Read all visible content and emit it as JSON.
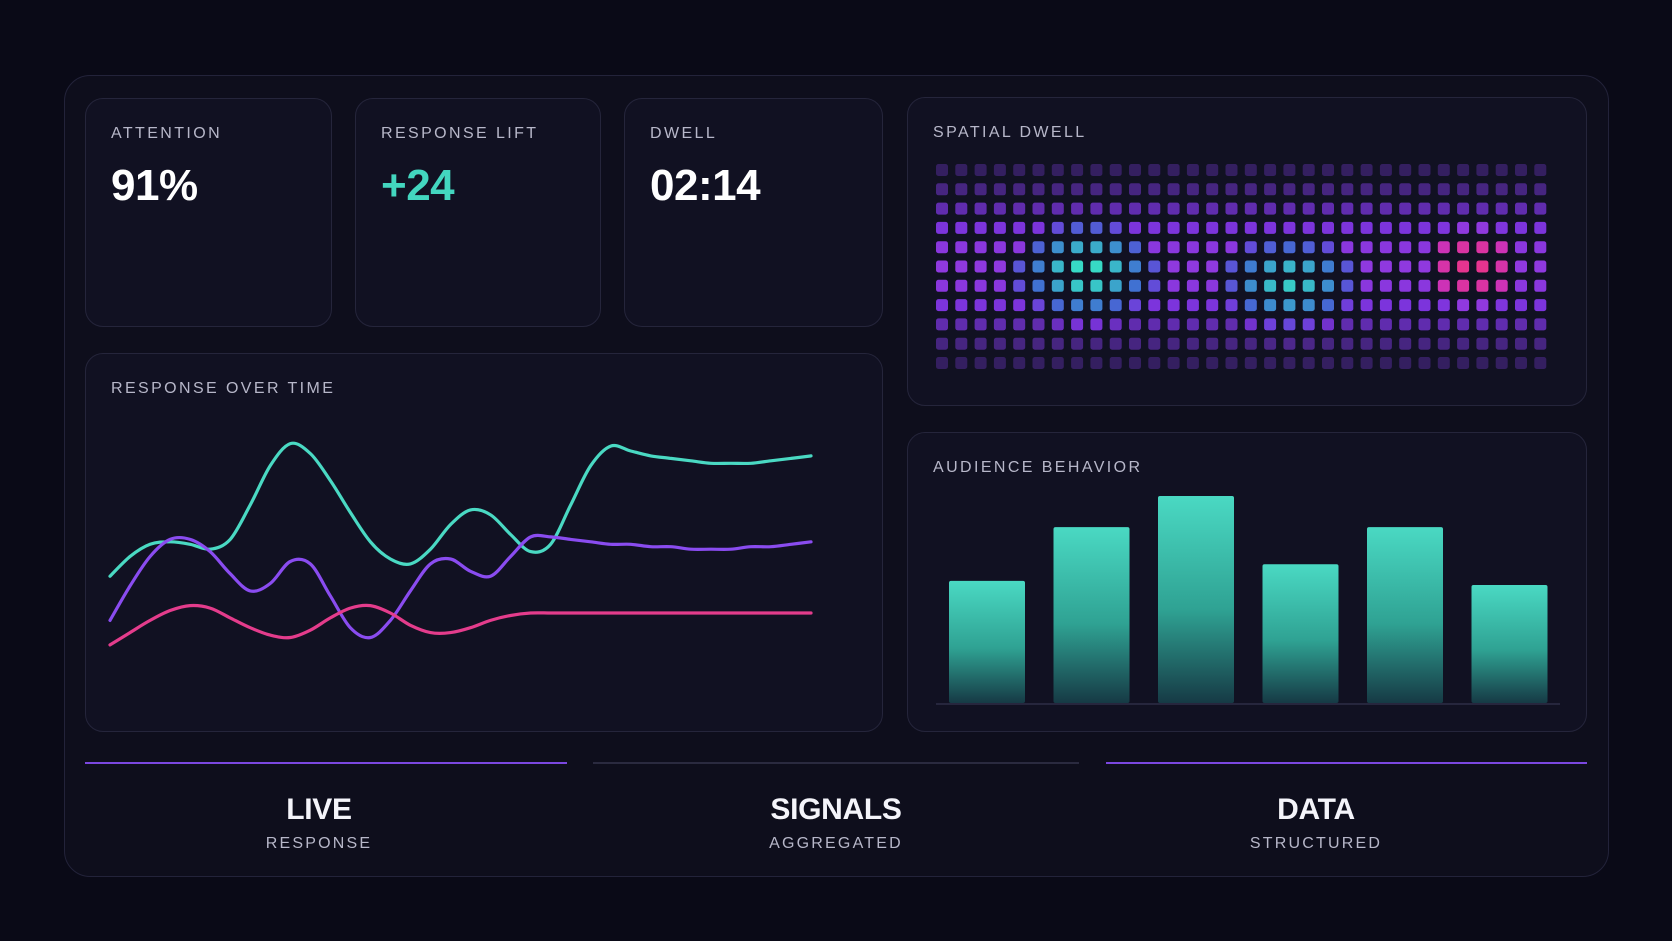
{
  "kpis": {
    "attention": {
      "label": "ATTENTION",
      "value": "91%"
    },
    "response_lift": {
      "label": "RESPONSE LIFT",
      "value": "+24"
    },
    "dwell": {
      "label": "DWELL",
      "value": "02:14"
    }
  },
  "response_over_time": {
    "title": "RESPONSE OVER TIME"
  },
  "spatial_dwell": {
    "title": "SPATIAL DWELL"
  },
  "audience_behavior": {
    "title": "AUDIENCE BEHAVIOR"
  },
  "footer": [
    {
      "title": "LIVE",
      "subtitle": "RESPONSE"
    },
    {
      "title": "SIGNALS",
      "subtitle": "AGGREGATED"
    },
    {
      "title": "DATA",
      "subtitle": "STRUCTURED"
    }
  ],
  "colors": {
    "teal": "#4ad9c3",
    "purple": "#8a4cf0",
    "pink": "#e43c8c",
    "footer_accent": "#7b47e0",
    "footer_muted": "#2a2a3f"
  },
  "chart_data": [
    {
      "type": "line",
      "title": "RESPONSE OVER TIME",
      "x": [
        0,
        1,
        2,
        3,
        4,
        5,
        6,
        7,
        8,
        9,
        10,
        11,
        12,
        13,
        14,
        15,
        16,
        17,
        18,
        19,
        20,
        21,
        22,
        23,
        24,
        25,
        26,
        27,
        28,
        29,
        30,
        31,
        32,
        33,
        34,
        35
      ],
      "series": [
        {
          "values": [
            48,
            56,
            61,
            62,
            61,
            59,
            63,
            77,
            93,
            102,
            98,
            87,
            74,
            62,
            55,
            53,
            59,
            69,
            75,
            73,
            65,
            58,
            61,
            77,
            93,
            101,
            99,
            97,
            96,
            95,
            94,
            94,
            94,
            95,
            96,
            97
          ]
        },
        {
          "values": [
            30,
            44,
            56,
            63,
            63,
            58,
            49,
            42,
            45,
            54,
            53,
            40,
            27,
            23,
            30,
            42,
            53,
            55,
            50,
            48,
            56,
            64,
            64,
            63,
            62,
            61,
            61,
            60,
            60,
            59,
            59,
            59,
            60,
            60,
            61,
            62
          ]
        },
        {
          "values": [
            20,
            25,
            30,
            34,
            36,
            35,
            31,
            27,
            24,
            23,
            26,
            31,
            35,
            36,
            33,
            28,
            25,
            25,
            27,
            30,
            32,
            33,
            33,
            33,
            33,
            33,
            33,
            33,
            33,
            33,
            33,
            33,
            33,
            33,
            33,
            33
          ]
        }
      ],
      "ylim": [
        0,
        110
      ]
    },
    {
      "type": "heatmap",
      "title": "SPATIAL DWELL",
      "rows": 11,
      "cols": 32
    },
    {
      "type": "bar",
      "title": "AUDIENCE BEHAVIOR",
      "categories": [
        "",
        "",
        "",
        "",
        "",
        ""
      ],
      "values": [
        59,
        85,
        100,
        67,
        85,
        57
      ],
      "ylim": [
        0,
        100
      ]
    }
  ]
}
